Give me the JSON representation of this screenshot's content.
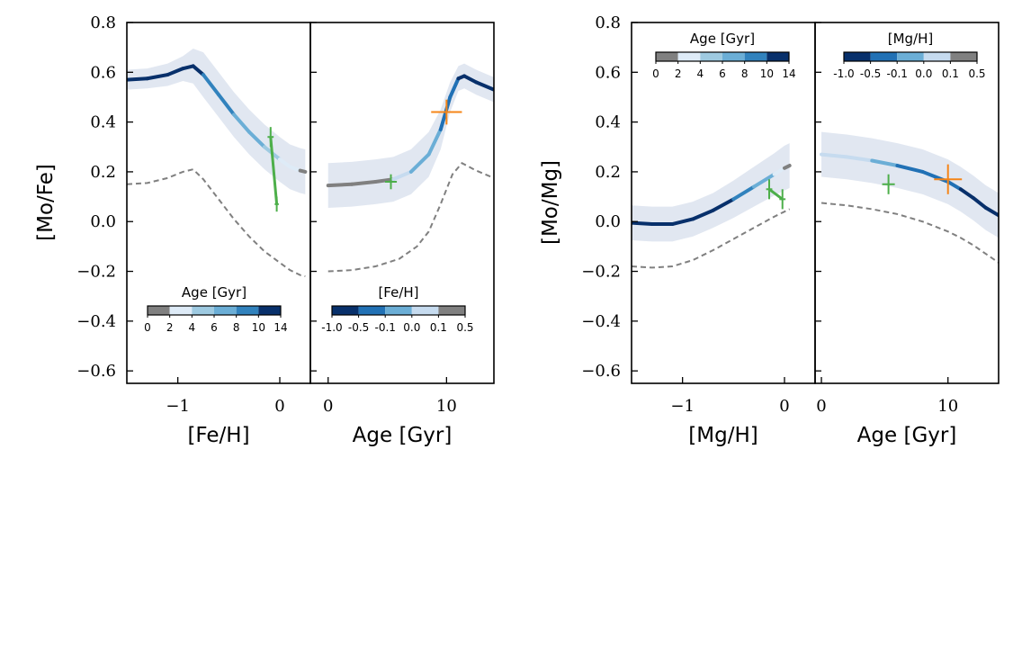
{
  "figure": {
    "left_group": {
      "ylabel": "[Mo/Fe]",
      "ylim": [
        -0.65,
        0.8
      ],
      "yticks": [
        0.8,
        0.6,
        0.4,
        0.2,
        0.0,
        -0.2,
        -0.4,
        -0.6
      ],
      "ytick_labels": [
        "0.8",
        "0.6",
        "0.4",
        "0.2",
        "0.0",
        "−0.2",
        "−0.4",
        "−0.6"
      ]
    },
    "right_group": {
      "ylabel": "[Mo/Mg]",
      "ylim": [
        -0.65,
        0.8
      ],
      "yticks": [
        0.8,
        0.6,
        0.4,
        0.2,
        0.0,
        -0.2,
        -0.4,
        -0.6
      ],
      "ytick_labels": [
        "0.8",
        "0.6",
        "0.4",
        "0.2",
        "0.0",
        "−0.2",
        "−0.4",
        "−0.6"
      ]
    }
  },
  "colorbars": {
    "age": {
      "title": "Age [Gyr]",
      "ticks": [
        "0",
        "2",
        "4",
        "6",
        "8",
        "10",
        "14"
      ],
      "colors": [
        "#808080",
        "#deebf7",
        "#9ecae1",
        "#6baed6",
        "#3182bd",
        "#08306b"
      ]
    },
    "feh": {
      "title": "[Fe/H]",
      "ticks": [
        "-1.0",
        "-0.5",
        "-0.1",
        "0.0",
        "0.1",
        "0.5"
      ],
      "colors": [
        "#08306b",
        "#2171b5",
        "#6baed6",
        "#c6dbef",
        "#808080"
      ]
    },
    "mgh": {
      "title": "[Mg/H]",
      "ticks": [
        "-1.0",
        "-0.5",
        "-0.1",
        "0.0",
        "0.1",
        "0.5"
      ],
      "colors": [
        "#08306b",
        "#2171b5",
        "#6baed6",
        "#c6dbef",
        "#808080"
      ]
    }
  },
  "colors": {
    "dashed": "#808080",
    "band": "#dce3ef",
    "green": "#4daf4a",
    "orange": "#f58518",
    "gray_track": "#808080"
  },
  "chart_data": [
    {
      "type": "line",
      "id": "mofe_vs_feh",
      "title": "",
      "xlabel": "[Fe/H]",
      "ylabel": "[Mo/Fe]",
      "xlim": [
        -1.5,
        0.3
      ],
      "ylim": [
        -0.65,
        0.8
      ],
      "xticks": [
        -1,
        0
      ],
      "xtick_labels": [
        "−1",
        "0"
      ],
      "colorbar": "age",
      "colorbar_position": "lower-center",
      "series": [
        {
          "name": "model",
          "x": [
            -1.5,
            -1.3,
            -1.1,
            -0.95,
            -0.85,
            -0.75,
            -0.6,
            -0.45,
            -0.3,
            -0.15,
            0.0,
            0.1,
            0.2,
            0.25
          ],
          "y": [
            0.57,
            0.575,
            0.59,
            0.615,
            0.625,
            0.59,
            0.51,
            0.43,
            0.36,
            0.3,
            0.25,
            0.22,
            0.205,
            0.2
          ],
          "band_halfwidth": [
            0.04,
            0.04,
            0.045,
            0.05,
            0.07,
            0.09,
            0.09,
            0.09,
            0.09,
            0.09,
            0.09,
            0.09,
            0.09,
            0.09
          ],
          "color_by_age": [
            14,
            13,
            12,
            11.5,
            11,
            10,
            9,
            8,
            7,
            5.5,
            4,
            3,
            1.5,
            0.5
          ]
        },
        {
          "name": "reference",
          "style": "dashed",
          "x": [
            -1.5,
            -1.3,
            -1.1,
            -0.95,
            -0.85,
            -0.75,
            -0.6,
            -0.45,
            -0.3,
            -0.15,
            0.0,
            0.1,
            0.2,
            0.25
          ],
          "y": [
            0.15,
            0.155,
            0.175,
            0.2,
            0.21,
            0.17,
            0.09,
            0.01,
            -0.06,
            -0.12,
            -0.165,
            -0.195,
            -0.215,
            -0.22
          ]
        }
      ],
      "markers": [
        {
          "color": "green",
          "kind": "track",
          "x": [
            -0.09,
            -0.03
          ],
          "y": [
            0.34,
            0.07
          ]
        },
        {
          "color": "green",
          "kind": "cross",
          "x": -0.09,
          "y": 0.34,
          "xerr": 0.03,
          "yerr": 0.04
        },
        {
          "color": "green",
          "kind": "cross",
          "x": -0.03,
          "y": 0.07,
          "xerr": 0.02,
          "yerr": 0.03
        }
      ]
    },
    {
      "type": "line",
      "id": "mofe_vs_age",
      "title": "",
      "xlabel": "Age [Gyr]",
      "ylabel": "",
      "xlim": [
        -1.5,
        14
      ],
      "ylim": [
        -0.65,
        0.8
      ],
      "xticks": [
        0,
        10
      ],
      "xtick_labels": [
        "0",
        "10"
      ],
      "colorbar": "feh",
      "colorbar_position": "lower-center",
      "series": [
        {
          "name": "model",
          "x": [
            0,
            2,
            4,
            5.5,
            7,
            8.5,
            9.5,
            10.3,
            11,
            11.5,
            12.5,
            14
          ],
          "y": [
            0.145,
            0.15,
            0.16,
            0.17,
            0.2,
            0.27,
            0.37,
            0.5,
            0.575,
            0.585,
            0.56,
            0.53
          ],
          "band_halfwidth": [
            0.09,
            0.09,
            0.09,
            0.09,
            0.09,
            0.09,
            0.08,
            0.06,
            0.05,
            0.05,
            0.05,
            0.05
          ],
          "color_by_feh": [
            0.5,
            0.35,
            0.2,
            0.1,
            0.02,
            -0.05,
            -0.15,
            -0.3,
            -0.5,
            -0.7,
            -0.85,
            -1.0
          ]
        },
        {
          "name": "reference",
          "style": "dashed",
          "x": [
            0,
            2,
            4,
            6,
            7.5,
            8.5,
            9.5,
            10.5,
            11.3,
            12.5,
            14
          ],
          "y": [
            -0.2,
            -0.195,
            -0.18,
            -0.15,
            -0.1,
            -0.04,
            0.07,
            0.19,
            0.235,
            0.205,
            0.175
          ]
        }
      ],
      "markers": [
        {
          "color": "green",
          "kind": "cross",
          "x": 5.3,
          "y": 0.16,
          "xerr": 0.5,
          "yerr": 0.03
        },
        {
          "color": "orange",
          "kind": "cross",
          "x": 10.0,
          "y": 0.44,
          "xerr": 1.3,
          "yerr": 0.05
        }
      ]
    },
    {
      "type": "line",
      "id": "momg_vs_mgh",
      "title": "",
      "xlabel": "[Mg/H]",
      "ylabel": "[Mo/Mg]",
      "xlim": [
        -1.5,
        0.3
      ],
      "ylim": [
        -0.65,
        0.8
      ],
      "xticks": [
        -1,
        0
      ],
      "xtick_labels": [
        "−1",
        "0"
      ],
      "colorbar": "age",
      "colorbar_position": "upper-center",
      "series": [
        {
          "name": "model",
          "x": [
            -1.5,
            -1.3,
            -1.1,
            -0.9,
            -0.7,
            -0.5,
            -0.3,
            -0.1,
            0.0,
            0.05
          ],
          "y": [
            -0.005,
            -0.01,
            -0.01,
            0.01,
            0.045,
            0.09,
            0.14,
            0.19,
            0.215,
            0.225
          ],
          "band_halfwidth": [
            0.07,
            0.07,
            0.07,
            0.07,
            0.07,
            0.075,
            0.08,
            0.085,
            0.09,
            0.09
          ],
          "color_by_age": [
            14,
            13.5,
            13,
            12.5,
            11.5,
            10,
            8,
            5,
            2.5,
            1
          ]
        },
        {
          "name": "reference",
          "style": "dashed",
          "x": [
            -1.5,
            -1.3,
            -1.1,
            -0.9,
            -0.7,
            -0.5,
            -0.3,
            -0.1,
            0.0,
            0.05
          ],
          "y": [
            -0.18,
            -0.185,
            -0.18,
            -0.155,
            -0.115,
            -0.07,
            -0.025,
            0.02,
            0.04,
            0.05
          ]
        }
      ],
      "markers": [
        {
          "color": "green",
          "kind": "track",
          "x": [
            -0.15,
            -0.02
          ],
          "y": [
            0.13,
            0.09
          ]
        },
        {
          "color": "green",
          "kind": "cross",
          "x": -0.15,
          "y": 0.13,
          "xerr": 0.03,
          "yerr": 0.04
        },
        {
          "color": "green",
          "kind": "cross",
          "x": -0.02,
          "y": 0.09,
          "xerr": 0.03,
          "yerr": 0.04
        }
      ]
    },
    {
      "type": "line",
      "id": "momg_vs_age",
      "title": "",
      "xlabel": "Age [Gyr]",
      "ylabel": "",
      "xlim": [
        -0.5,
        14
      ],
      "ylim": [
        -0.65,
        0.8
      ],
      "xticks": [
        0,
        10
      ],
      "xtick_labels": [
        "0",
        "10"
      ],
      "colorbar": "mgh",
      "colorbar_position": "upper-center",
      "series": [
        {
          "name": "model",
          "x": [
            0,
            2,
            4,
            6,
            8,
            10,
            11,
            12,
            13,
            14
          ],
          "y": [
            0.27,
            0.26,
            0.245,
            0.225,
            0.2,
            0.16,
            0.13,
            0.095,
            0.055,
            0.025
          ],
          "band_halfwidth": [
            0.09,
            0.09,
            0.09,
            0.09,
            0.09,
            0.09,
            0.09,
            0.09,
            0.09,
            0.09
          ],
          "color_by_mgh": [
            0.05,
            0.02,
            -0.02,
            -0.1,
            -0.2,
            -0.4,
            -0.55,
            -0.7,
            -0.85,
            -1.0
          ]
        },
        {
          "name": "reference",
          "style": "dashed",
          "x": [
            0,
            2,
            4,
            6,
            8,
            10,
            11,
            12,
            13,
            14
          ],
          "y": [
            0.075,
            0.065,
            0.05,
            0.03,
            0.0,
            -0.04,
            -0.065,
            -0.095,
            -0.13,
            -0.165
          ]
        }
      ],
      "markers": [
        {
          "color": "green",
          "kind": "cross",
          "x": 5.3,
          "y": 0.15,
          "xerr": 0.5,
          "yerr": 0.04
        },
        {
          "color": "orange",
          "kind": "cross",
          "x": 10.0,
          "y": 0.17,
          "xerr": 1.1,
          "yerr": 0.06
        }
      ]
    }
  ]
}
